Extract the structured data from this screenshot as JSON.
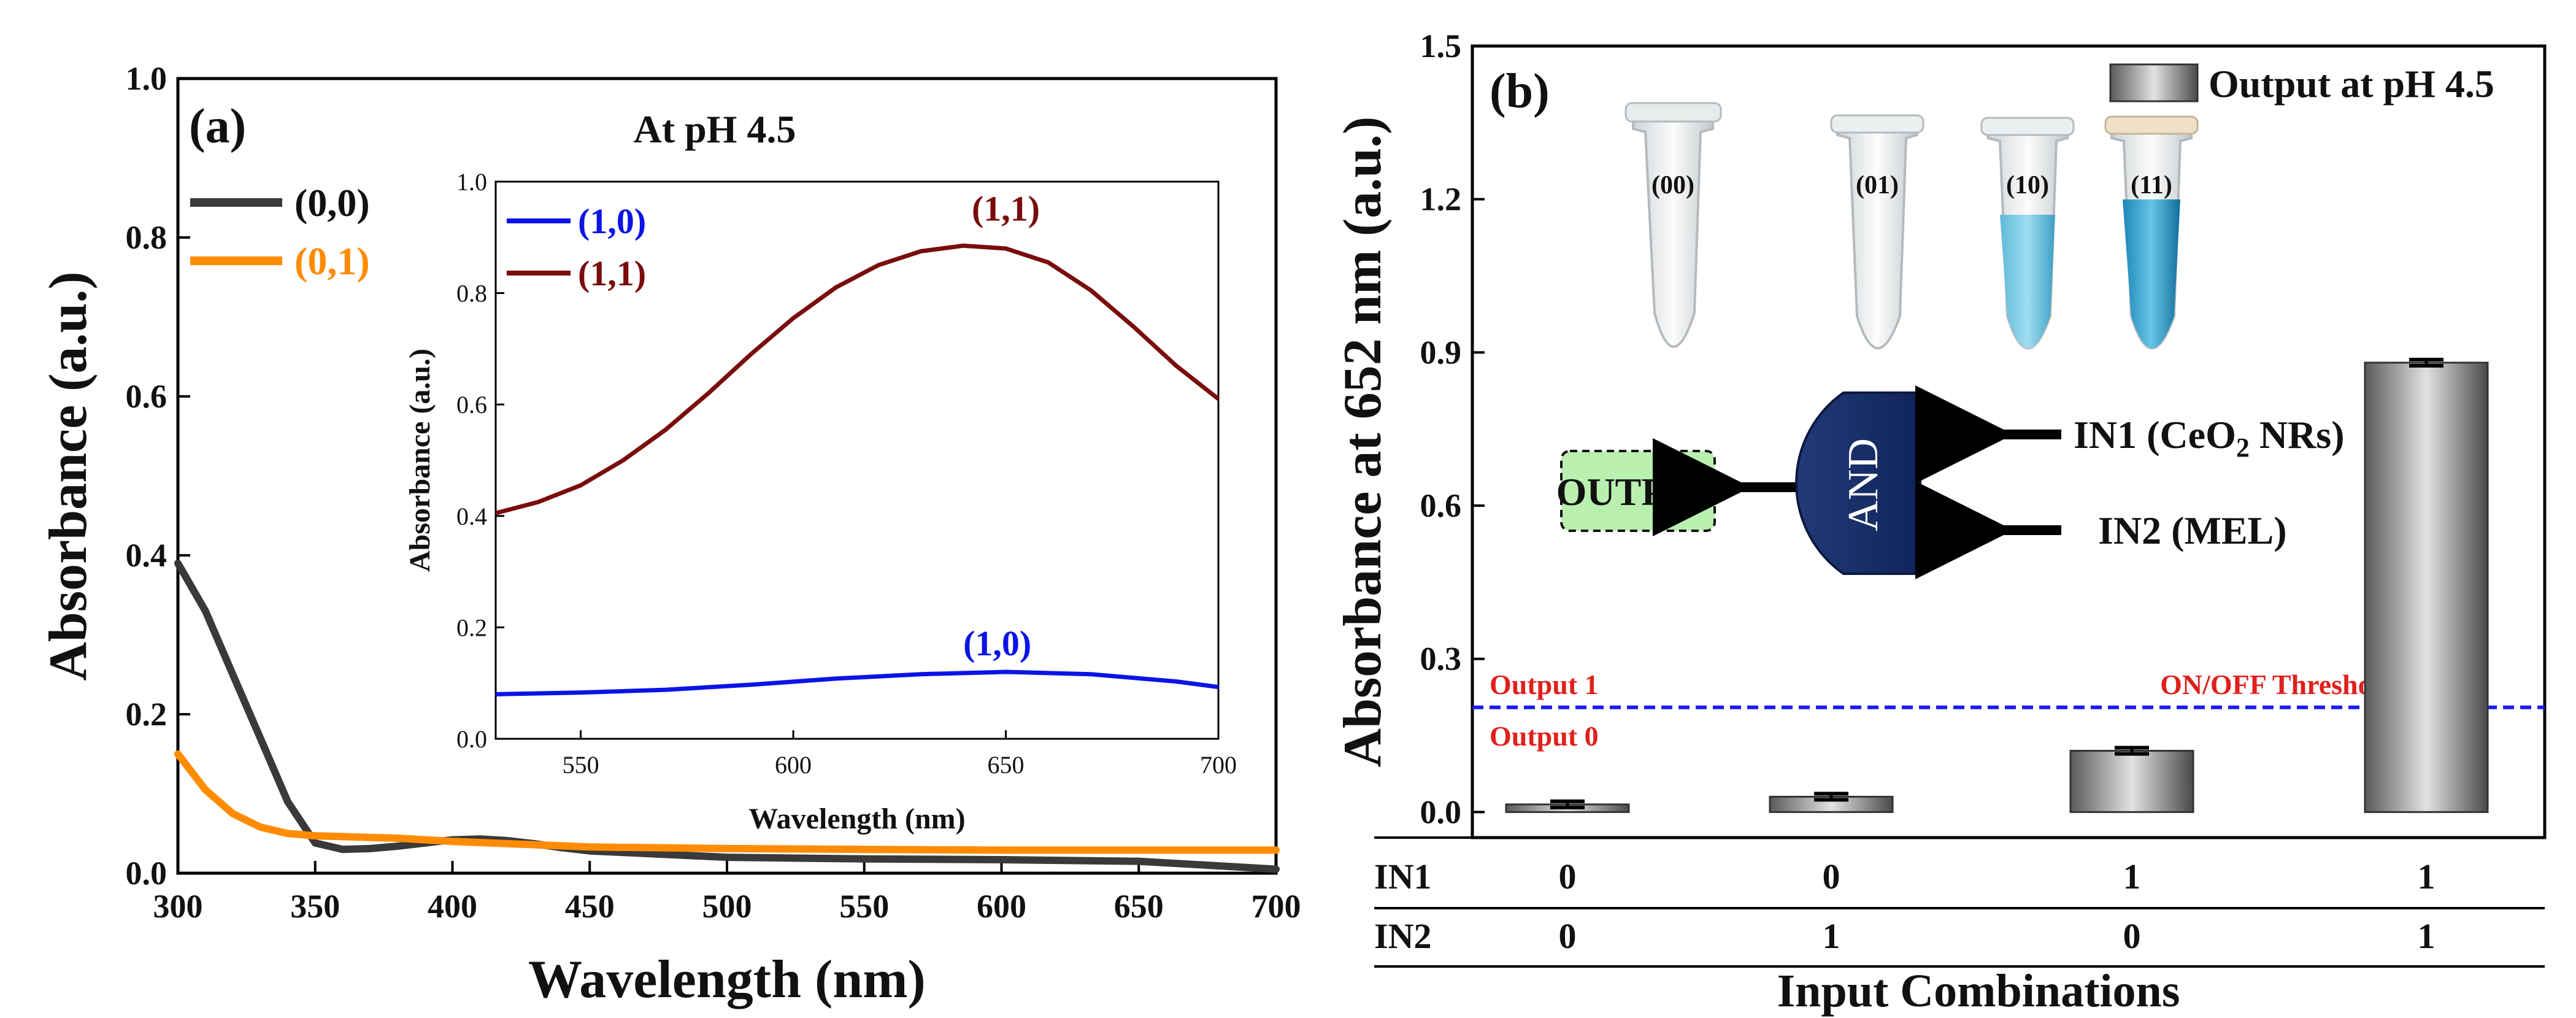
{
  "chart_data": [
    {
      "panel": "(a)",
      "type": "line",
      "title": "At pH 4.5",
      "xlabel": "Wavelength (nm)",
      "ylabel": "Absorbance (a.u.)",
      "xlim": [
        300,
        700
      ],
      "ylim": [
        0.0,
        1.0
      ],
      "xticks": [
        "300",
        "350",
        "400",
        "450",
        "500",
        "550",
        "600",
        "650",
        "700"
      ],
      "yticks": [
        "0.0",
        "0.2",
        "0.4",
        "0.6",
        "0.8",
        "1.0"
      ],
      "legend_location": "top-left",
      "series": [
        {
          "name": "(0,0)",
          "color": "#3a3a3a",
          "x": [
            300,
            310,
            320,
            330,
            340,
            350,
            360,
            370,
            380,
            390,
            400,
            410,
            420,
            430,
            440,
            450,
            500,
            550,
            600,
            650,
            700
          ],
          "y": [
            0.39,
            0.33,
            0.25,
            0.17,
            0.09,
            0.038,
            0.03,
            0.031,
            0.034,
            0.038,
            0.042,
            0.043,
            0.041,
            0.037,
            0.032,
            0.028,
            0.02,
            0.018,
            0.017,
            0.015,
            0.005
          ]
        },
        {
          "name": "(0,1)",
          "color": "#ff8c00",
          "x": [
            300,
            310,
            320,
            330,
            340,
            350,
            360,
            370,
            380,
            400,
            450,
            500,
            550,
            600,
            650,
            700
          ],
          "y": [
            0.15,
            0.105,
            0.075,
            0.058,
            0.05,
            0.047,
            0.046,
            0.045,
            0.044,
            0.04,
            0.033,
            0.031,
            0.03,
            0.029,
            0.029,
            0.029
          ]
        }
      ],
      "inset": {
        "type": "line",
        "xlabel": "Wavelength (nm)",
        "ylabel": "Absorbance (a.u.)",
        "xlim": [
          530,
          700
        ],
        "ylim": [
          0.0,
          1.0
        ],
        "xticks": [
          "550",
          "600",
          "650",
          "700"
        ],
        "yticks": [
          "0.0",
          "0.2",
          "0.4",
          "0.6",
          "0.8",
          "1.0"
        ],
        "legend_location": "top-left",
        "series": [
          {
            "name": "(1,0)",
            "color": "#0a14e6",
            "x": [
              530,
              550,
              570,
              590,
              610,
              630,
              650,
              670,
              690,
              700
            ],
            "y": [
              0.08,
              0.083,
              0.088,
              0.097,
              0.108,
              0.116,
              0.12,
              0.116,
              0.103,
              0.093
            ]
          },
          {
            "name": "(1,1)",
            "color": "#7a0c0c",
            "x": [
              530,
              540,
              550,
              560,
              570,
              580,
              590,
              600,
              610,
              620,
              630,
              640,
              650,
              660,
              670,
              680,
              690,
              700
            ],
            "y": [
              0.405,
              0.425,
              0.455,
              0.5,
              0.555,
              0.62,
              0.69,
              0.755,
              0.81,
              0.85,
              0.875,
              0.885,
              0.88,
              0.855,
              0.805,
              0.74,
              0.67,
              0.61
            ]
          }
        ],
        "annotations": [
          {
            "text": "(1,1)",
            "x": 650,
            "y": 0.93,
            "color": "#7a0c0c"
          },
          {
            "text": "(1,0)",
            "x": 648,
            "y": 0.15,
            "color": "#0a14e6"
          }
        ]
      }
    },
    {
      "panel": "(b)",
      "type": "bar",
      "xlabel": "Input Combinations",
      "ylabel": "Absorbance at 652 nm (a.u.)",
      "ylim": [
        -0.05,
        1.5
      ],
      "yticks": [
        "0.0",
        "0.3",
        "0.6",
        "0.9",
        "1.2",
        "1.5"
      ],
      "categories": [
        "(0,0)",
        "(0,1)",
        "(1,0)",
        "(1,1)"
      ],
      "values": [
        0.015,
        0.03,
        0.12,
        0.88
      ],
      "errors": [
        0.006,
        0.006,
        0.006,
        0.006
      ],
      "legend": "Output at pH 4.5",
      "legend_location": "top-right",
      "input_rows": [
        {
          "label": "IN1",
          "values": [
            "0",
            "0",
            "1",
            "1"
          ]
        },
        {
          "label": "IN2",
          "values": [
            "0",
            "1",
            "0",
            "1"
          ]
        }
      ],
      "threshold": {
        "value": 0.205,
        "label": "ON/OFF Threshold",
        "above_label": "Output 1",
        "below_label": "Output 0",
        "color": "#1c1cf0"
      },
      "tube_labels": [
        "(00)",
        "(01)",
        "(10)",
        "(11)"
      ],
      "logic_diagram": {
        "gate_label": "AND",
        "output_label": "OUTPUT",
        "input1_prefix": "IN1 (CeO",
        "input1_sub": "2",
        "input1_suffix": " NRs)",
        "input2": "IN2 (MEL)"
      }
    }
  ]
}
